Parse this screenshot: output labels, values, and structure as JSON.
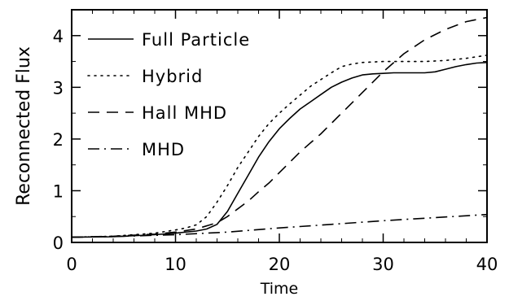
{
  "chart_data": {
    "type": "line",
    "title": "",
    "xlabel": "Time",
    "ylabel": "Reconnected Flux",
    "xlim": [
      0,
      40
    ],
    "ylim": [
      0,
      4.5
    ],
    "xticks": [
      0,
      10,
      20,
      30,
      40
    ],
    "yticks": [
      0,
      1,
      2,
      3,
      4
    ],
    "xtick_labels": [
      "0",
      "10",
      "20",
      "30",
      "40"
    ],
    "ytick_labels": [
      "0",
      "1",
      "2",
      "3",
      "4"
    ],
    "grid": false,
    "legend_position": "top-left",
    "series": [
      {
        "name": "Full Particle",
        "style": "solid",
        "x": [
          0,
          4,
          8,
          10,
          12,
          13,
          14,
          15,
          16,
          17,
          18,
          19,
          20,
          21,
          22,
          23,
          24,
          25,
          26,
          27,
          28,
          29,
          30,
          31,
          32,
          33,
          34,
          35,
          36,
          37,
          38,
          39,
          40
        ],
        "y": [
          0.1,
          0.11,
          0.15,
          0.18,
          0.22,
          0.26,
          0.35,
          0.6,
          0.95,
          1.3,
          1.65,
          1.95,
          2.2,
          2.4,
          2.58,
          2.72,
          2.86,
          3.0,
          3.1,
          3.18,
          3.24,
          3.26,
          3.27,
          3.28,
          3.28,
          3.28,
          3.28,
          3.3,
          3.35,
          3.4,
          3.44,
          3.47,
          3.48
        ]
      },
      {
        "name": "Hybrid",
        "style": "dotted",
        "x": [
          0,
          4,
          8,
          10,
          11,
          12,
          13,
          14,
          15,
          16,
          17,
          18,
          19,
          20,
          21,
          22,
          23,
          24,
          25,
          26,
          27,
          28,
          30,
          32,
          34,
          36,
          38,
          40
        ],
        "y": [
          0.1,
          0.12,
          0.18,
          0.24,
          0.28,
          0.34,
          0.5,
          0.78,
          1.1,
          1.45,
          1.75,
          2.05,
          2.3,
          2.5,
          2.68,
          2.85,
          3.02,
          3.15,
          3.28,
          3.4,
          3.45,
          3.48,
          3.5,
          3.5,
          3.5,
          3.52,
          3.56,
          3.62
        ]
      },
      {
        "name": "Hall MHD",
        "style": "dashed",
        "x": [
          0,
          4,
          8,
          10,
          12,
          14,
          15,
          16,
          17,
          18,
          19,
          20,
          21,
          22,
          24,
          26,
          28,
          30,
          32,
          34,
          36,
          38,
          40
        ],
        "y": [
          0.1,
          0.12,
          0.16,
          0.2,
          0.26,
          0.38,
          0.5,
          0.65,
          0.8,
          0.98,
          1.15,
          1.35,
          1.55,
          1.75,
          2.1,
          2.5,
          2.9,
          3.3,
          3.65,
          3.92,
          4.12,
          4.27,
          4.35
        ]
      },
      {
        "name": "MHD",
        "style": "dash-dot",
        "x": [
          0,
          5,
          10,
          15,
          20,
          25,
          30,
          35,
          40
        ],
        "y": [
          0.1,
          0.12,
          0.15,
          0.2,
          0.28,
          0.35,
          0.42,
          0.48,
          0.54
        ]
      }
    ]
  }
}
